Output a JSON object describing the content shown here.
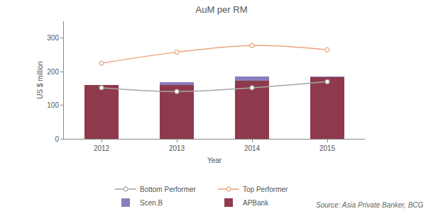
{
  "chart_data": {
    "type": "bar",
    "title": "AuM per RM",
    "x_label": "Year",
    "y_label": "US $ million",
    "categories": [
      "2012",
      "2013",
      "2014",
      "2015"
    ],
    "stacked": true,
    "grid": false,
    "legend": "bottom",
    "series": [
      {
        "name": "APBank",
        "type": "bar",
        "color": "#8e3a4c",
        "values": [
          160,
          160,
          172,
          183
        ]
      },
      {
        "name": "Scen.B",
        "type": "bar",
        "color": "#8c7dbe",
        "values": [
          0,
          8,
          13,
          2
        ]
      },
      {
        "name": "Top Performer",
        "type": "line",
        "color": "#e8a57e",
        "marker": "circle",
        "line_style": "smooth",
        "values": [
          225,
          258,
          278,
          265
        ]
      },
      {
        "name": "Bottom Performer",
        "type": "line",
        "color": "#a6a6a6",
        "marker": "circle",
        "line_style": "smooth",
        "values": [
          152,
          141,
          152,
          170
        ]
      }
    ],
    "ylim": [
      0,
      350
    ],
    "yticks": [
      0,
      100,
      200,
      300
    ],
    "annotations": [
      "Source: Asia Private Banker, BCG"
    ]
  }
}
